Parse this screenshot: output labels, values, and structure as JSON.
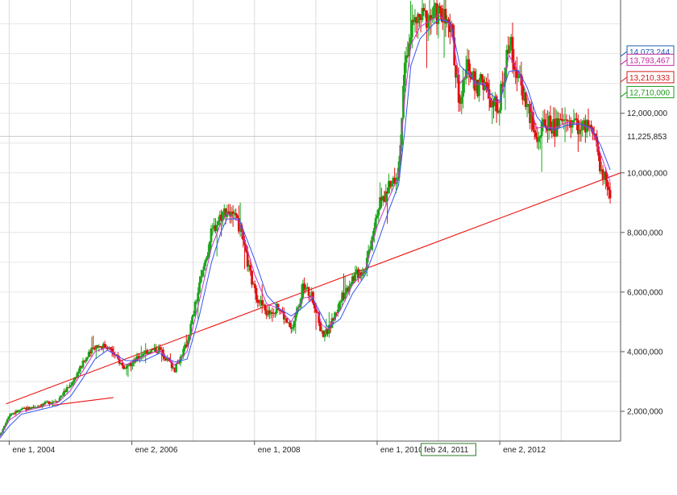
{
  "chart_data": {
    "type": "candlestick",
    "title": "",
    "xlabel": "",
    "ylabel": "",
    "grid": true,
    "x_ticks": [
      {
        "label": "ene 1, 2004",
        "t": 2004.0
      },
      {
        "label": "ene 2, 2006",
        "t": 2006.0
      },
      {
        "label": "ene 1, 2008",
        "t": 2008.0
      },
      {
        "label": "ene 1, 2010",
        "t": 2010.0
      },
      {
        "label": "ene 2, 2012",
        "t": 2012.0
      }
    ],
    "y_ticks": [
      {
        "label": "2,000,000",
        "value": 2000000
      },
      {
        "label": "4,000,000",
        "value": 4000000
      },
      {
        "label": "6,000,000",
        "value": 6000000
      },
      {
        "label": "8,000,000",
        "value": 8000000
      },
      {
        "label": "10,000,000",
        "value": 10000000
      },
      {
        "label": "12,000,000",
        "value": 12000000
      }
    ],
    "xlim": [
      2003.85,
      2013.97
    ],
    "ylim": [
      1000000,
      15800000
    ],
    "cursor_date_label": "feb 24, 2011",
    "cursor_t": 2011.15,
    "price_level": {
      "label": "11,225,853",
      "value": 11225853
    },
    "value_badges": [
      {
        "label": "14,073,244",
        "value": 14073244,
        "color": "#1a5fb4"
      },
      {
        "label": "13,793,467",
        "value": 13793467,
        "color": "#c0279b"
      },
      {
        "label": "13,210,333",
        "value": 13210333,
        "color": "#d41a1a"
      },
      {
        "label": "12,710,000",
        "value": 12710000,
        "color": "#1a9a1a"
      }
    ],
    "trendlines": [
      {
        "from": [
          2003.95,
          2250000
        ],
        "to": [
          2013.97,
          10000000
        ],
        "color": "#ee1111"
      },
      {
        "from": [
          2004.7,
          2200000
        ],
        "to": [
          2005.7,
          2460000
        ],
        "color": "#ee1111"
      }
    ],
    "series": [
      {
        "name": "price",
        "up_color": "#1aa51a",
        "down_color": "#e01010",
        "x": [
          2003.85,
          2004.0,
          2004.2,
          2004.5,
          2004.8,
          2005.0,
          2005.2,
          2005.4,
          2005.6,
          2005.9,
          2006.2,
          2006.45,
          2006.7,
          2006.9,
          2007.1,
          2007.3,
          2007.45,
          2007.55,
          2007.75,
          2008.0,
          2008.2,
          2008.4,
          2008.6,
          2008.8,
          2008.95,
          2009.1,
          2009.2,
          2009.4,
          2009.6,
          2009.8,
          2010.0,
          2010.2,
          2010.35,
          2010.45,
          2010.55,
          2010.7,
          2010.9,
          2011.0,
          2011.2,
          2011.35,
          2011.5,
          2011.6,
          2011.75,
          2011.85,
          2012.0,
          2012.15,
          2012.3,
          2012.45,
          2012.6,
          2012.75,
          2012.9,
          2013.1,
          2013.3,
          2013.5,
          2013.65,
          2013.8
        ],
        "values": [
          1200000,
          1900000,
          2050000,
          2200000,
          2400000,
          2900000,
          3600000,
          4200000,
          4200000,
          3400000,
          4000000,
          4100000,
          3400000,
          4300000,
          6200000,
          8000000,
          8600000,
          8800000,
          8200000,
          6000000,
          5300000,
          5500000,
          4700000,
          6200000,
          5800000,
          4600000,
          4700000,
          5700000,
          6500000,
          6800000,
          8800000,
          9500000,
          10200000,
          13400000,
          14900000,
          15200000,
          15300000,
          15400000,
          14800000,
          12400000,
          13700000,
          12800000,
          13100000,
          12200000,
          12400000,
          14500000,
          13200000,
          12300000,
          11100000,
          11700000,
          11500000,
          11800000,
          11600000,
          11400000,
          10200000,
          9300000
        ]
      },
      {
        "name": "ma-fast",
        "color": "#cc33cc",
        "x": [
          2003.85,
          2004.0,
          2004.2,
          2004.5,
          2004.8,
          2005.0,
          2005.2,
          2005.4,
          2005.6,
          2005.9,
          2006.2,
          2006.45,
          2006.7,
          2006.9,
          2007.1,
          2007.3,
          2007.45,
          2007.55,
          2007.75,
          2008.0,
          2008.2,
          2008.4,
          2008.6,
          2008.8,
          2008.95,
          2009.1,
          2009.2,
          2009.4,
          2009.6,
          2009.8,
          2010.0,
          2010.2,
          2010.35,
          2010.45,
          2010.55,
          2010.7,
          2010.9,
          2011.0,
          2011.2,
          2011.35,
          2011.5,
          2011.6,
          2011.75,
          2011.85,
          2012.0,
          2012.15,
          2012.3,
          2012.45,
          2012.6,
          2012.75,
          2012.9,
          2013.1,
          2013.3,
          2013.5,
          2013.65,
          2013.8
        ],
        "values": [
          1150000,
          1700000,
          1980000,
          2130000,
          2300000,
          2700000,
          3350000,
          4000000,
          4150000,
          3550000,
          3850000,
          4050000,
          3550000,
          4000000,
          5700000,
          7500000,
          8300000,
          8650000,
          8350000,
          6600000,
          5600000,
          5450000,
          5000000,
          5800000,
          5850000,
          4900000,
          4750000,
          5400000,
          6250000,
          6700000,
          8200000,
          9200000,
          9900000,
          12500000,
          14300000,
          14900000,
          15150000,
          15300000,
          14950000,
          13000000,
          13400000,
          12950000,
          13000000,
          12450000,
          12350000,
          13950000,
          13400000,
          12600000,
          11500000,
          11550000,
          11500000,
          11700000,
          11650000,
          11450000,
          10600000,
          9700000
        ]
      },
      {
        "name": "ma-slow",
        "color": "#3355ee",
        "x": [
          2003.85,
          2004.0,
          2004.2,
          2004.5,
          2004.8,
          2005.0,
          2005.2,
          2005.4,
          2005.6,
          2005.9,
          2006.2,
          2006.45,
          2006.7,
          2006.9,
          2007.1,
          2007.3,
          2007.45,
          2007.55,
          2007.75,
          2008.0,
          2008.2,
          2008.4,
          2008.6,
          2008.8,
          2008.95,
          2009.1,
          2009.2,
          2009.4,
          2009.6,
          2009.8,
          2010.0,
          2010.2,
          2010.35,
          2010.45,
          2010.55,
          2010.7,
          2010.9,
          2011.0,
          2011.2,
          2011.35,
          2011.5,
          2011.6,
          2011.75,
          2011.85,
          2012.0,
          2012.15,
          2012.3,
          2012.45,
          2012.6,
          2012.75,
          2012.9,
          2013.1,
          2013.3,
          2013.5,
          2013.65,
          2013.8
        ],
        "values": [
          1100000,
          1500000,
          1900000,
          2050000,
          2200000,
          2500000,
          3100000,
          3750000,
          4050000,
          3700000,
          3700000,
          3950000,
          3650000,
          3750000,
          5200000,
          7000000,
          8000000,
          8450000,
          8450000,
          7100000,
          5900000,
          5450000,
          5200000,
          5500000,
          5800000,
          5200000,
          4800000,
          5100000,
          5950000,
          6550000,
          7600000,
          8800000,
          9600000,
          11400000,
          13600000,
          14500000,
          14950000,
          15150000,
          15050000,
          13600000,
          13300000,
          13050000,
          12950000,
          12650000,
          12400000,
          13400000,
          13450000,
          12850000,
          11900000,
          11500000,
          11450000,
          11600000,
          11650000,
          11500000,
          10900000,
          10100000
        ]
      }
    ]
  }
}
